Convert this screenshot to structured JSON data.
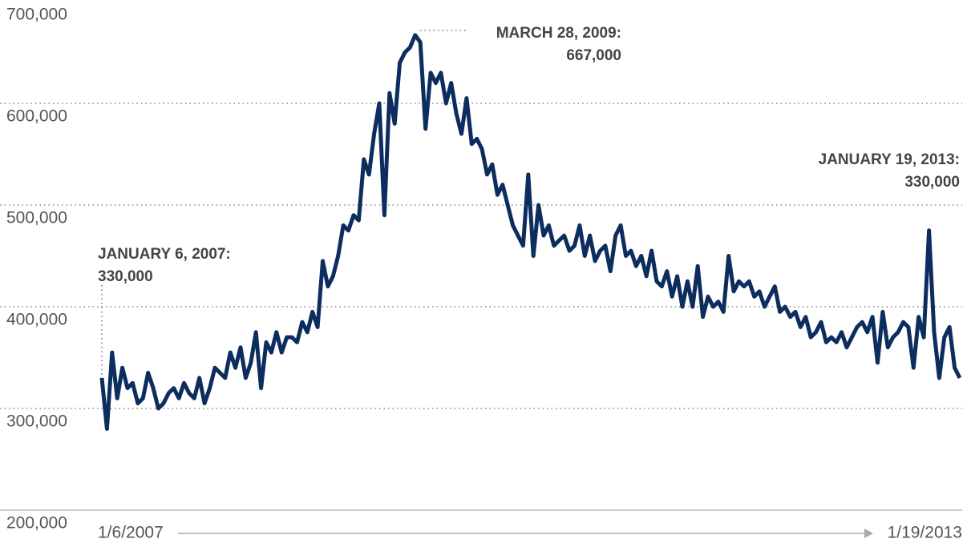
{
  "chart_data": {
    "type": "line",
    "categories": [
      "1/6/2007",
      null,
      null,
      null,
      null,
      null,
      null,
      null,
      null,
      null,
      null,
      null,
      null,
      null,
      null,
      null,
      null,
      null,
      null,
      null,
      null,
      null,
      null,
      null,
      null,
      null,
      null,
      null,
      null,
      null,
      null,
      null,
      null,
      null,
      null,
      null,
      null,
      null,
      null,
      null,
      null,
      null,
      null,
      null,
      null,
      null,
      null,
      null,
      null,
      null,
      null,
      null,
      null,
      null,
      null,
      null,
      null,
      null,
      null,
      null,
      null,
      null,
      null,
      null,
      null,
      null,
      null,
      null,
      null,
      null,
      null,
      null,
      null,
      null,
      null,
      null,
      null,
      null,
      null,
      null,
      null,
      null,
      null,
      null,
      null,
      null,
      null,
      null,
      null,
      null,
      null,
      null,
      null,
      null,
      null,
      null,
      null,
      null,
      null,
      null,
      null,
      null,
      null,
      null,
      null,
      null,
      null,
      null,
      null,
      null,
      null,
      null,
      null,
      null,
      null,
      null,
      null,
      null,
      null,
      null,
      null,
      null,
      null,
      null,
      null,
      null,
      null,
      null,
      null,
      null,
      null,
      null,
      null,
      null,
      null,
      null,
      null,
      null,
      null,
      null,
      null,
      null,
      null,
      null,
      null,
      null,
      null,
      null,
      null,
      null,
      null,
      null,
      null,
      null,
      null,
      null,
      null,
      null,
      null,
      null,
      null,
      null,
      null,
      null,
      null,
      null,
      null,
      "1/19/2013"
    ],
    "values": [
      330000,
      280000,
      355000,
      310000,
      340000,
      320000,
      325000,
      305000,
      310000,
      335000,
      320000,
      300000,
      305000,
      315000,
      320000,
      310000,
      325000,
      315000,
      310000,
      330000,
      305000,
      320000,
      340000,
      335000,
      330000,
      355000,
      340000,
      360000,
      330000,
      345000,
      375000,
      320000,
      365000,
      355000,
      375000,
      355000,
      370000,
      370000,
      365000,
      385000,
      375000,
      395000,
      380000,
      445000,
      420000,
      430000,
      450000,
      480000,
      475000,
      490000,
      485000,
      545000,
      530000,
      570000,
      600000,
      490000,
      610000,
      580000,
      640000,
      650000,
      655000,
      667000,
      660000,
      575000,
      630000,
      620000,
      630000,
      600000,
      620000,
      590000,
      570000,
      605000,
      560000,
      565000,
      555000,
      530000,
      540000,
      510000,
      520000,
      500000,
      480000,
      470000,
      460000,
      530000,
      450000,
      500000,
      470000,
      480000,
      460000,
      465000,
      470000,
      455000,
      460000,
      480000,
      450000,
      470000,
      445000,
      455000,
      460000,
      435000,
      470000,
      480000,
      450000,
      455000,
      440000,
      450000,
      430000,
      455000,
      425000,
      420000,
      435000,
      410000,
      430000,
      400000,
      425000,
      400000,
      440000,
      390000,
      410000,
      400000,
      405000,
      395000,
      450000,
      415000,
      425000,
      420000,
      425000,
      410000,
      415000,
      400000,
      410000,
      420000,
      395000,
      400000,
      390000,
      395000,
      380000,
      390000,
      370000,
      375000,
      385000,
      365000,
      370000,
      365000,
      375000,
      360000,
      370000,
      380000,
      385000,
      375000,
      390000,
      345000,
      395000,
      360000,
      370000,
      375000,
      385000,
      380000,
      340000,
      390000,
      370000,
      475000,
      375000,
      330000,
      370000,
      380000,
      340000,
      330000
    ],
    "color": "#0d2d5e",
    "ylim": [
      200000,
      700000
    ],
    "yticks": [
      {
        "value": 200000,
        "label": "200,000"
      },
      {
        "value": 300000,
        "label": "300,000"
      },
      {
        "value": 400000,
        "label": "400,000"
      },
      {
        "value": 500000,
        "label": "500,000"
      },
      {
        "value": 600000,
        "label": "600,000"
      },
      {
        "value": 700000,
        "label": "700,000"
      }
    ],
    "grid": true,
    "annotations": [
      {
        "lines": [
          "JANUARY 6, 2007:",
          "330,000"
        ]
      },
      {
        "lines": [
          "MARCH 28, 2009:",
          "667,000"
        ]
      },
      {
        "lines": [
          "JANUARY 19, 2013:",
          "330,000"
        ]
      }
    ]
  }
}
